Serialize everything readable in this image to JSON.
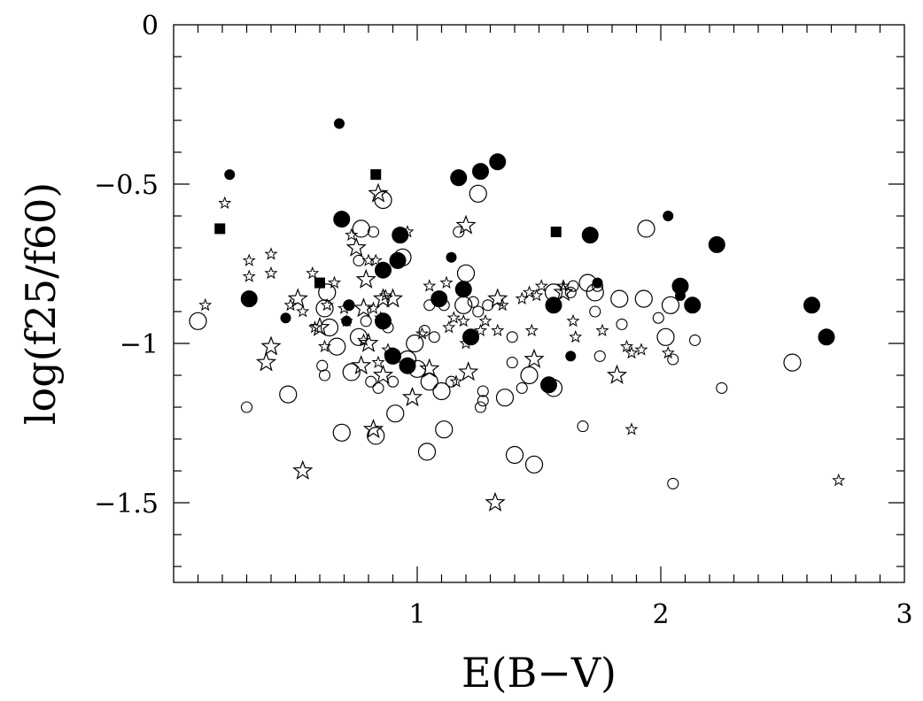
{
  "chart_data": {
    "type": "scatter",
    "title": "",
    "xlabel": "E(B−V)",
    "ylabel": "log(f25/f60)",
    "xlim": [
      0,
      3
    ],
    "ylim": [
      -1.75,
      0
    ],
    "x_ticks": [
      {
        "value": 1,
        "label": "1"
      },
      {
        "value": 2,
        "label": "2"
      },
      {
        "value": 3,
        "label": "3"
      }
    ],
    "y_ticks": [
      {
        "value": 0,
        "label": "0"
      },
      {
        "value": -0.5,
        "label": "−0.5"
      },
      {
        "value": -1,
        "label": "−1"
      },
      {
        "value": -1.5,
        "label": "−1.5"
      }
    ],
    "grid": false,
    "legend": "none",
    "colors": {
      "marker": "#000000",
      "background": "#ffffff"
    },
    "series": [
      {
        "marker": "filled-circle-large",
        "points": [
          [
            0.31,
            -0.86
          ],
          [
            0.69,
            -0.61
          ],
          [
            0.86,
            -0.77
          ],
          [
            0.86,
            -0.93
          ],
          [
            0.92,
            -0.74
          ],
          [
            0.93,
            -0.66
          ],
          [
            0.9,
            -1.04
          ],
          [
            0.96,
            -1.07
          ],
          [
            1.09,
            -0.86
          ],
          [
            1.17,
            -0.48
          ],
          [
            1.19,
            -0.83
          ],
          [
            1.22,
            -0.98
          ],
          [
            1.26,
            -0.46
          ],
          [
            1.33,
            -0.43
          ],
          [
            1.54,
            -1.13
          ],
          [
            1.56,
            -0.88
          ],
          [
            1.71,
            -0.66
          ],
          [
            2.08,
            -0.82
          ],
          [
            2.13,
            -0.88
          ],
          [
            2.23,
            -0.69
          ],
          [
            2.62,
            -0.88
          ],
          [
            2.68,
            -0.98
          ]
        ]
      },
      {
        "marker": "filled-circle-small",
        "points": [
          [
            0.23,
            -0.47
          ],
          [
            0.46,
            -0.92
          ],
          [
            0.68,
            -0.31
          ],
          [
            0.71,
            -0.93
          ],
          [
            0.72,
            -0.88
          ],
          [
            1.14,
            -0.73
          ],
          [
            1.63,
            -1.04
          ],
          [
            1.74,
            -0.81
          ],
          [
            2.03,
            -0.6
          ],
          [
            2.08,
            -0.85
          ]
        ]
      },
      {
        "marker": "filled-square",
        "points": [
          [
            0.19,
            -0.64
          ],
          [
            0.6,
            -0.81
          ],
          [
            0.83,
            -0.47
          ],
          [
            1.57,
            -0.65
          ]
        ]
      },
      {
        "marker": "open-circle-large",
        "points": [
          [
            0.1,
            -0.93
          ],
          [
            0.47,
            -1.16
          ],
          [
            0.62,
            -0.89
          ],
          [
            0.63,
            -0.84
          ],
          [
            0.64,
            -0.95
          ],
          [
            0.67,
            -1.01
          ],
          [
            0.69,
            -1.28
          ],
          [
            0.73,
            -1.09
          ],
          [
            0.76,
            -0.98
          ],
          [
            0.77,
            -0.64
          ],
          [
            0.83,
            -1.29
          ],
          [
            0.86,
            -0.55
          ],
          [
            0.91,
            -1.22
          ],
          [
            0.94,
            -0.73
          ],
          [
            0.96,
            -1.05
          ],
          [
            0.99,
            -1.0
          ],
          [
            1.0,
            -1.08
          ],
          [
            1.04,
            -1.34
          ],
          [
            1.05,
            -1.12
          ],
          [
            1.1,
            -1.15
          ],
          [
            1.11,
            -1.27
          ],
          [
            1.19,
            -0.88
          ],
          [
            1.2,
            -0.78
          ],
          [
            1.25,
            -0.53
          ],
          [
            1.36,
            -1.17
          ],
          [
            1.4,
            -1.35
          ],
          [
            1.46,
            -1.1
          ],
          [
            1.48,
            -1.38
          ],
          [
            1.56,
            -0.84
          ],
          [
            1.56,
            -1.14
          ],
          [
            1.7,
            -0.81
          ],
          [
            1.73,
            -0.84
          ],
          [
            1.83,
            -0.86
          ],
          [
            1.93,
            -0.86
          ],
          [
            1.94,
            -0.64
          ],
          [
            2.02,
            -0.98
          ],
          [
            2.04,
            -0.88
          ],
          [
            2.54,
            -1.06
          ]
        ]
      },
      {
        "marker": "open-circle-small",
        "points": [
          [
            0.3,
            -1.2
          ],
          [
            0.61,
            -1.07
          ],
          [
            0.62,
            -1.1
          ],
          [
            0.72,
            -0.88
          ],
          [
            0.76,
            -0.74
          ],
          [
            0.79,
            -0.93
          ],
          [
            0.81,
            -1.12
          ],
          [
            0.82,
            -0.65
          ],
          [
            0.84,
            -1.14
          ],
          [
            0.88,
            -0.95
          ],
          [
            0.9,
            -1.12
          ],
          [
            1.03,
            -0.96
          ],
          [
            1.05,
            -0.88
          ],
          [
            1.07,
            -0.98
          ],
          [
            1.11,
            -0.88
          ],
          [
            1.14,
            -1.12
          ],
          [
            1.17,
            -0.65
          ],
          [
            1.23,
            -0.87
          ],
          [
            1.25,
            -0.9
          ],
          [
            1.26,
            -1.2
          ],
          [
            1.27,
            -1.15
          ],
          [
            1.27,
            -1.18
          ],
          [
            1.29,
            -0.88
          ],
          [
            1.39,
            -0.98
          ],
          [
            1.39,
            -1.06
          ],
          [
            1.43,
            -1.14
          ],
          [
            1.63,
            -0.84
          ],
          [
            1.64,
            -0.82
          ],
          [
            1.68,
            -1.26
          ],
          [
            1.73,
            -0.9
          ],
          [
            1.74,
            -0.82
          ],
          [
            1.75,
            -1.04
          ],
          [
            1.84,
            -0.94
          ],
          [
            1.99,
            -0.92
          ],
          [
            2.05,
            -1.05
          ],
          [
            2.05,
            -1.44
          ],
          [
            2.14,
            -0.99
          ],
          [
            2.25,
            -1.14
          ]
        ]
      },
      {
        "marker": "open-star-large",
        "points": [
          [
            0.4,
            -1.01
          ],
          [
            0.38,
            -1.06
          ],
          [
            0.51,
            -0.86
          ],
          [
            0.53,
            -1.4
          ],
          [
            0.6,
            -0.95
          ],
          [
            0.75,
            -0.7
          ],
          [
            0.77,
            -1.07
          ],
          [
            0.78,
            -0.89
          ],
          [
            0.79,
            -0.8
          ],
          [
            0.8,
            -1.0
          ],
          [
            0.82,
            -1.27
          ],
          [
            0.84,
            -0.53
          ],
          [
            0.86,
            -0.86
          ],
          [
            0.86,
            -1.1
          ],
          [
            0.9,
            -0.86
          ],
          [
            0.98,
            -1.17
          ],
          [
            1.05,
            -1.08
          ],
          [
            1.2,
            -0.63
          ],
          [
            1.21,
            -1.09
          ],
          [
            1.32,
            -1.5
          ],
          [
            1.33,
            -0.86
          ],
          [
            1.48,
            -1.05
          ],
          [
            1.6,
            -0.84
          ],
          [
            1.82,
            -1.1
          ]
        ]
      },
      {
        "marker": "open-star-small",
        "points": [
          [
            0.13,
            -0.88
          ],
          [
            0.21,
            -0.56
          ],
          [
            0.31,
            -0.74
          ],
          [
            0.31,
            -0.79
          ],
          [
            0.4,
            -0.78
          ],
          [
            0.4,
            -0.72
          ],
          [
            0.48,
            -0.88
          ],
          [
            0.53,
            -0.9
          ],
          [
            0.57,
            -0.78
          ],
          [
            0.58,
            -0.95
          ],
          [
            0.62,
            -1.01
          ],
          [
            0.63,
            -0.88
          ],
          [
            0.66,
            -0.81
          ],
          [
            0.7,
            -0.89
          ],
          [
            0.71,
            -0.93
          ],
          [
            0.73,
            -0.66
          ],
          [
            0.78,
            -0.99
          ],
          [
            0.8,
            -0.74
          ],
          [
            0.82,
            -0.89
          ],
          [
            0.83,
            -0.74
          ],
          [
            0.84,
            -1.06
          ],
          [
            0.85,
            -0.92
          ],
          [
            0.87,
            -0.85
          ],
          [
            0.88,
            -1.02
          ],
          [
            0.96,
            -0.65
          ],
          [
            1.02,
            -0.97
          ],
          [
            1.05,
            -0.82
          ],
          [
            1.12,
            -0.81
          ],
          [
            1.13,
            -0.95
          ],
          [
            1.15,
            -0.92
          ],
          [
            1.16,
            -1.12
          ],
          [
            1.19,
            -0.93
          ],
          [
            1.2,
            -1.0
          ],
          [
            1.26,
            -0.96
          ],
          [
            1.28,
            -0.93
          ],
          [
            1.33,
            -0.96
          ],
          [
            1.35,
            -0.88
          ],
          [
            1.43,
            -0.86
          ],
          [
            1.46,
            -0.84
          ],
          [
            1.47,
            -0.96
          ],
          [
            1.49,
            -0.85
          ],
          [
            1.51,
            -0.82
          ],
          [
            1.6,
            -0.82
          ],
          [
            1.64,
            -0.93
          ],
          [
            1.65,
            -0.98
          ],
          [
            1.76,
            -0.96
          ],
          [
            1.86,
            -1.01
          ],
          [
            1.88,
            -1.03
          ],
          [
            1.88,
            -1.27
          ],
          [
            1.92,
            -1.02
          ],
          [
            2.03,
            -1.03
          ],
          [
            2.73,
            -1.43
          ]
        ]
      }
    ]
  }
}
